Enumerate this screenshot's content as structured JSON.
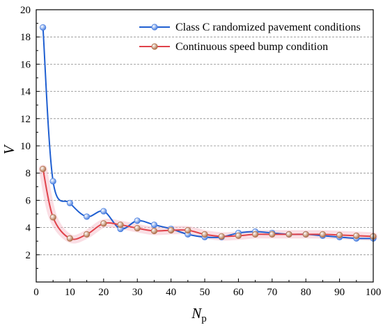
{
  "chart_data": {
    "type": "line",
    "title": "",
    "xlabel": "N",
    "xlabel_sub": "p",
    "ylabel": "V",
    "xlim": [
      0,
      100
    ],
    "ylim": [
      0,
      20
    ],
    "xticks": [
      0,
      10,
      20,
      30,
      40,
      50,
      60,
      70,
      80,
      90,
      100
    ],
    "yticks": [
      2,
      4,
      6,
      8,
      10,
      12,
      14,
      16,
      18,
      20
    ],
    "grid": "horizontal dashed",
    "legend_position": "top-right",
    "series": [
      {
        "name": "Class C randomized pavement conditions",
        "color": "#1f5fd1",
        "marker_color": "#4a7fe0",
        "x": [
          2,
          5,
          10,
          15,
          20,
          25,
          30,
          35,
          40,
          45,
          50,
          55,
          60,
          65,
          70,
          75,
          80,
          85,
          90,
          95,
          100
        ],
        "y": [
          18.7,
          7.4,
          5.8,
          4.8,
          5.2,
          3.9,
          4.5,
          4.2,
          3.9,
          3.5,
          3.3,
          3.3,
          3.6,
          3.7,
          3.6,
          3.5,
          3.5,
          3.4,
          3.3,
          3.2,
          3.2
        ]
      },
      {
        "name": "Continuous speed bump condition",
        "color": "#e0424a",
        "marker_color": "#b0704a",
        "x": [
          2,
          5,
          10,
          15,
          20,
          25,
          30,
          35,
          40,
          45,
          50,
          55,
          60,
          65,
          70,
          75,
          80,
          85,
          90,
          95,
          100
        ],
        "y": [
          8.3,
          4.75,
          3.2,
          3.5,
          4.3,
          4.2,
          3.95,
          3.75,
          3.8,
          3.8,
          3.5,
          3.35,
          3.4,
          3.5,
          3.5,
          3.5,
          3.5,
          3.5,
          3.45,
          3.4,
          3.35
        ]
      }
    ]
  }
}
